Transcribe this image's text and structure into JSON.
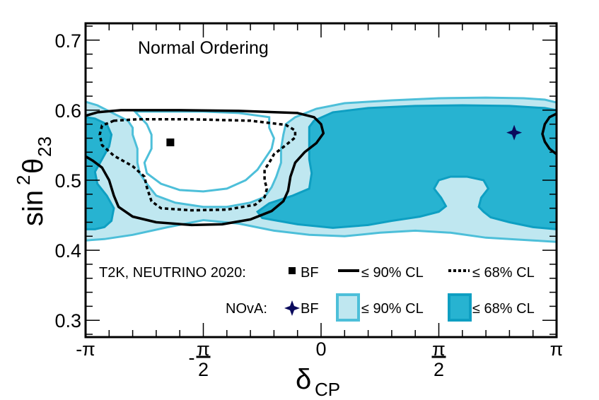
{
  "chart_data": {
    "type": "contour",
    "title": "",
    "annotation": "Normal Ordering",
    "xlabel": "δ",
    "xlabel_sub": "CP",
    "ylabel": "sin",
    "ylabel_sup": "2",
    "ylabel_theta": "θ",
    "ylabel_sub": "23",
    "x_unit": "pi",
    "xlim": [
      -1,
      1
    ],
    "ylim": [
      0.276,
      0.724
    ],
    "x_ticks": [
      {
        "value": -1,
        "label": "-π",
        "kind": "plain"
      },
      {
        "value": -0.5,
        "label_num": "π",
        "label_den": "2",
        "sign": "-",
        "kind": "fraction"
      },
      {
        "value": 0,
        "label": "0",
        "kind": "plain"
      },
      {
        "value": 0.5,
        "label_num": "π",
        "label_den": "2",
        "sign": "",
        "kind": "fraction"
      },
      {
        "value": 1,
        "label": "π",
        "kind": "plain"
      }
    ],
    "y_ticks": [
      {
        "value": 0.3,
        "label": "0.3"
      },
      {
        "value": 0.4,
        "label": "0.4"
      },
      {
        "value": 0.5,
        "label": "0.5"
      },
      {
        "value": 0.6,
        "label": "0.6"
      },
      {
        "value": 0.7,
        "label": "0.7"
      }
    ],
    "colors": {
      "nova_90_fill": "#bfe7f0",
      "nova_90_edge": "#4dbfd9",
      "nova_68_fill": "#27b3d1",
      "nova_68_edge": "#0e9fc2",
      "nova_bf": "#0a0a5c",
      "t2k": "#000000"
    },
    "series": [
      {
        "name": "NOvA ≤ 90% CL",
        "experiment": "NOvA",
        "style": "filled-light",
        "regions": [
          {
            "outer": [
              [
                -1.0,
                0.612
              ],
              [
                -0.95,
                0.607
              ],
              [
                -0.88,
                0.595
              ],
              [
                -0.82,
                0.585
              ],
              [
                -0.8,
                0.575
              ],
              [
                -0.8,
                0.565
              ],
              [
                -0.78,
                0.545
              ],
              [
                -0.78,
                0.525
              ],
              [
                -0.77,
                0.51
              ],
              [
                -0.74,
                0.495
              ],
              [
                -0.7,
                0.478
              ],
              [
                -0.62,
                0.468
              ],
              [
                -0.5,
                0.462
              ],
              [
                -0.4,
                0.462
              ],
              [
                -0.3,
                0.468
              ],
              [
                -0.24,
                0.476
              ],
              [
                -0.21,
                0.49
              ],
              [
                -0.19,
                0.505
              ],
              [
                -0.17,
                0.525
              ],
              [
                -0.17,
                0.545
              ],
              [
                -0.16,
                0.565
              ],
              [
                -0.15,
                0.58
              ],
              [
                -0.11,
                0.59
              ],
              [
                -0.02,
                0.602
              ],
              [
                0.1,
                0.61
              ],
              [
                0.3,
                0.614
              ],
              [
                0.5,
                0.617
              ],
              [
                0.7,
                0.618
              ],
              [
                0.86,
                0.617
              ],
              [
                0.95,
                0.615
              ],
              [
                1.0,
                0.611
              ],
              [
                1.0,
                0.412
              ],
              [
                0.9,
                0.414
              ],
              [
                0.7,
                0.418
              ],
              [
                0.55,
                0.425
              ],
              [
                0.4,
                0.428
              ],
              [
                0.25,
                0.425
              ],
              [
                0.1,
                0.42
              ],
              [
                -0.05,
                0.422
              ],
              [
                -0.2,
                0.428
              ],
              [
                -0.35,
                0.438
              ],
              [
                -0.5,
                0.443
              ],
              [
                -0.65,
                0.433
              ],
              [
                -0.8,
                0.422
              ],
              [
                -0.92,
                0.416
              ],
              [
                -1.0,
                0.414
              ]
            ]
          }
        ]
      },
      {
        "name": "NOvA ≤ 68% CL",
        "experiment": "NOvA",
        "style": "filled-dark",
        "regions": [
          {
            "points": [
              [
                -1.0,
                0.59
              ],
              [
                -0.96,
                0.588
              ],
              [
                -0.91,
                0.58
              ],
              [
                -0.89,
                0.565
              ],
              [
                -0.9,
                0.548
              ],
              [
                -0.93,
                0.53
              ],
              [
                -0.96,
                0.512
              ],
              [
                -0.95,
                0.495
              ],
              [
                -0.91,
                0.478
              ],
              [
                -0.88,
                0.46
              ],
              [
                -0.89,
                0.442
              ],
              [
                -0.92,
                0.433
              ],
              [
                -0.96,
                0.43
              ],
              [
                -1.0,
                0.43
              ]
            ]
          },
          {
            "points": [
              [
                -0.05,
                0.576
              ],
              [
                -0.03,
                0.585
              ],
              [
                0.05,
                0.597
              ],
              [
                0.2,
                0.603
              ],
              [
                0.4,
                0.606
              ],
              [
                0.6,
                0.607
              ],
              [
                0.8,
                0.606
              ],
              [
                0.95,
                0.603
              ],
              [
                1.0,
                0.6
              ],
              [
                1.0,
                0.43
              ],
              [
                0.9,
                0.433
              ],
              [
                0.8,
                0.44
              ],
              [
                0.72,
                0.447
              ],
              [
                0.69,
                0.455
              ],
              [
                0.67,
                0.462
              ],
              [
                0.68,
                0.475
              ],
              [
                0.71,
                0.488
              ],
              [
                0.69,
                0.5
              ],
              [
                0.62,
                0.505
              ],
              [
                0.55,
                0.505
              ],
              [
                0.5,
                0.5
              ],
              [
                0.48,
                0.488
              ],
              [
                0.51,
                0.475
              ],
              [
                0.53,
                0.463
              ],
              [
                0.5,
                0.455
              ],
              [
                0.42,
                0.448
              ],
              [
                0.3,
                0.442
              ],
              [
                0.2,
                0.436
              ],
              [
                0.05,
                0.432
              ],
              [
                -0.1,
                0.437
              ],
              [
                -0.25,
                0.446
              ],
              [
                -0.27,
                0.455
              ],
              [
                -0.22,
                0.467
              ],
              [
                -0.12,
                0.478
              ],
              [
                -0.05,
                0.488
              ],
              [
                -0.04,
                0.51
              ],
              [
                -0.05,
                0.53
              ],
              [
                -0.05,
                0.55
              ]
            ]
          }
        ]
      },
      {
        "name": "NOvA 90% inner hole",
        "experiment": "NOvA",
        "style": "hole",
        "regions": [
          {
            "points": [
              [
                -0.79,
                0.598
              ],
              [
                -0.68,
                0.598
              ],
              [
                -0.5,
                0.598
              ],
              [
                -0.35,
                0.596
              ],
              [
                -0.22,
                0.59
              ],
              [
                -0.22,
                0.575
              ],
              [
                -0.2,
                0.56
              ],
              [
                -0.21,
                0.545
              ],
              [
                -0.24,
                0.53
              ],
              [
                -0.27,
                0.515
              ],
              [
                -0.32,
                0.5
              ],
              [
                -0.4,
                0.488
              ],
              [
                -0.5,
                0.484
              ],
              [
                -0.6,
                0.486
              ],
              [
                -0.68,
                0.495
              ],
              [
                -0.74,
                0.51
              ],
              [
                -0.75,
                0.525
              ],
              [
                -0.72,
                0.545
              ],
              [
                -0.72,
                0.565
              ],
              [
                -0.74,
                0.58
              ]
            ]
          }
        ]
      },
      {
        "name": "T2K ≤ 90% CL",
        "experiment": "T2K, NEUTRINO 2020",
        "style": "solid-line",
        "regions": [
          {
            "points": [
              [
                -1.0,
                0.592
              ],
              [
                -0.95,
                0.597
              ],
              [
                -0.85,
                0.6
              ],
              [
                -0.6,
                0.6
              ],
              [
                -0.35,
                0.599
              ],
              [
                -0.1,
                0.596
              ],
              [
                -0.03,
                0.59
              ],
              [
                0.0,
                0.58
              ],
              [
                0.01,
                0.567
              ],
              [
                -0.02,
                0.553
              ],
              [
                -0.07,
                0.54
              ],
              [
                -0.11,
                0.525
              ],
              [
                -0.13,
                0.505
              ],
              [
                -0.14,
                0.485
              ],
              [
                -0.16,
                0.47
              ],
              [
                -0.21,
                0.456
              ],
              [
                -0.3,
                0.444
              ],
              [
                -0.42,
                0.437
              ],
              [
                -0.55,
                0.436
              ],
              [
                -0.7,
                0.44
              ],
              [
                -0.8,
                0.448
              ],
              [
                -0.86,
                0.462
              ],
              [
                -0.88,
                0.478
              ],
              [
                -0.9,
                0.5
              ],
              [
                -0.93,
                0.518
              ],
              [
                -0.97,
                0.528
              ],
              [
                -1.0,
                0.534
              ]
            ]
          },
          {
            "points": [
              [
                1.0,
                0.595
              ],
              [
                0.97,
                0.59
              ],
              [
                0.95,
                0.58
              ],
              [
                0.94,
                0.566
              ],
              [
                0.95,
                0.555
              ],
              [
                0.97,
                0.545
              ],
              [
                1.0,
                0.537
              ]
            ]
          }
        ]
      },
      {
        "name": "T2K ≤ 68% CL",
        "experiment": "T2K, NEUTRINO 2020",
        "style": "dashed-line",
        "regions": [
          {
            "points": [
              [
                -0.88,
                0.585
              ],
              [
                -0.78,
                0.587
              ],
              [
                -0.55,
                0.587
              ],
              [
                -0.3,
                0.585
              ],
              [
                -0.15,
                0.579
              ],
              [
                -0.11,
                0.571
              ],
              [
                -0.11,
                0.561
              ],
              [
                -0.15,
                0.55
              ],
              [
                -0.2,
                0.537
              ],
              [
                -0.22,
                0.525
              ],
              [
                -0.24,
                0.515
              ],
              [
                -0.24,
                0.5
              ],
              [
                -0.23,
                0.488
              ],
              [
                -0.24,
                0.476
              ],
              [
                -0.28,
                0.465
              ],
              [
                -0.4,
                0.458
              ],
              [
                -0.55,
                0.457
              ],
              [
                -0.68,
                0.46
              ],
              [
                -0.72,
                0.47
              ],
              [
                -0.74,
                0.49
              ],
              [
                -0.75,
                0.505
              ],
              [
                -0.8,
                0.52
              ],
              [
                -0.88,
                0.535
              ],
              [
                -0.93,
                0.55
              ],
              [
                -0.94,
                0.565
              ],
              [
                -0.93,
                0.578
              ]
            ],
            "closed": true
          }
        ]
      }
    ],
    "markers": [
      {
        "name": "T2K best fit",
        "experiment": "T2K",
        "x": -0.64,
        "y": 0.554,
        "shape": "square",
        "color": "#000000"
      },
      {
        "name": "NOvA best fit",
        "experiment": "NOvA",
        "x": 0.82,
        "y": 0.568,
        "shape": "star4",
        "color": "#0a0a5c"
      }
    ],
    "legend": {
      "placement": "bottom",
      "rows": [
        {
          "title": "T2K, NEUTRINO 2020:",
          "entries": [
            {
              "symbol": "square",
              "label": "BF"
            },
            {
              "symbol": "solid-line",
              "label": "≤ 90% CL"
            },
            {
              "symbol": "dashed-line",
              "label": "≤ 68% CL"
            }
          ]
        },
        {
          "title": "NOvA:",
          "entries": [
            {
              "symbol": "star4",
              "label": "BF"
            },
            {
              "symbol": "box-light",
              "label": "≤ 90% CL"
            },
            {
              "symbol": "box-dark",
              "label": "≤ 68% CL"
            }
          ]
        }
      ]
    }
  }
}
